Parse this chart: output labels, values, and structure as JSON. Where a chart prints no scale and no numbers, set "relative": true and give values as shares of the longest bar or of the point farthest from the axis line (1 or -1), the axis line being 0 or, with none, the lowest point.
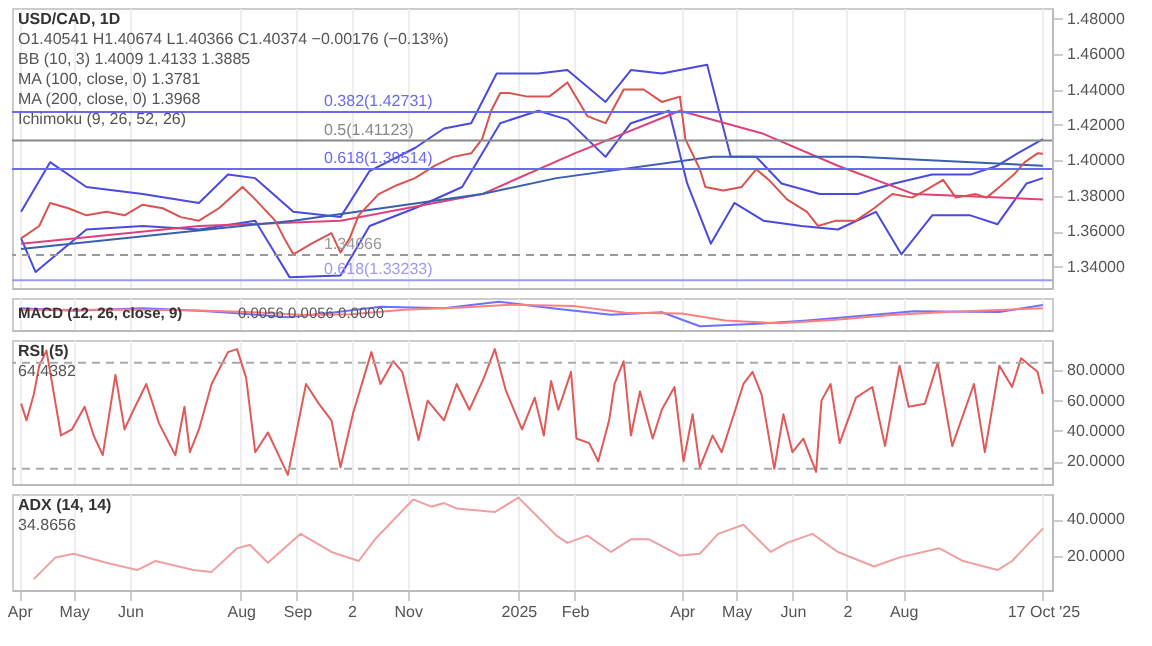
{
  "chart_data": [
    {
      "type": "line",
      "title": "USD/CAD, 1D",
      "annotations": [
        "O1.40541 H1.40674 L1.40366 C1.40374 −0.00176 (−0.13%)",
        "BB (10, 3)  1.4009  1.4133  1.3885",
        "MA (100, close, 0)  1.3781",
        "MA (200, close, 0)  1.3968",
        "Ichimoku (9, 26, 52, 26)"
      ],
      "xlim": [
        "2024-03-28",
        "2025-10-22"
      ],
      "ylim": [
        1.328,
        1.486
      ],
      "yticks": [
        {
          "value": 1.34,
          "label": "1.34000"
        },
        {
          "value": 1.36,
          "label": "1.36000"
        },
        {
          "value": 1.38,
          "label": "1.38000"
        },
        {
          "value": 1.4,
          "label": "1.40000"
        },
        {
          "value": 1.42,
          "label": "1.42000"
        },
        {
          "value": 1.44,
          "label": "1.44000"
        },
        {
          "value": 1.46,
          "label": "1.46000"
        },
        {
          "value": 1.48,
          "label": "1.48000"
        }
      ],
      "tick_labels": "y",
      "grid": "x",
      "xticks": [
        {
          "value": "2024-04-01",
          "label": null
        },
        {
          "value": "2024-05-01",
          "label": null
        },
        {
          "value": "2024-06-01",
          "label": null
        },
        {
          "value": "2024-08-01",
          "label": null
        },
        {
          "value": "2024-09-01",
          "label": null
        },
        {
          "value": "2024-10-01",
          "label": null
        },
        {
          "value": "2024-11-01",
          "label": null
        },
        {
          "value": "2025-01-01",
          "label": null
        },
        {
          "value": "2025-02-01",
          "label": null
        },
        {
          "value": "2025-04-01",
          "label": null
        },
        {
          "value": "2025-05-01",
          "label": null
        },
        {
          "value": "2025-06-01",
          "label": null
        },
        {
          "value": "2025-07-01",
          "label": null
        },
        {
          "value": "2025-08-01",
          "label": null
        },
        {
          "value": "2025-10-17",
          "label": null
        }
      ],
      "ref_lines": [
        {
          "axis": "y",
          "value": 1.42731,
          "label": "0.382(1.42731)",
          "color": "#6a6af0"
        },
        {
          "axis": "y",
          "value": 1.41123,
          "label": "0.5(1.41123)",
          "color": "#888888"
        },
        {
          "axis": "y",
          "value": 1.39514,
          "label": "0.618(1.39514)",
          "color": "#6a6af0"
        },
        {
          "axis": "y",
          "value": 1.33233,
          "label": "0.618(1.33233)",
          "color": "#9a9af5"
        },
        {
          "axis": "y",
          "value": 1.34666,
          "label": "1.34666",
          "color": "#999999",
          "line_style": "dashed"
        }
      ],
      "series": [
        {
          "color": "#4a4ae0",
          "x": [
            "2024-04-02",
            "2024-04-18",
            "2024-05-08",
            "2024-06-08",
            "2024-07-09",
            "2024-07-25",
            "2024-08-09",
            "2024-08-30",
            "2024-09-25",
            "2024-10-11",
            "2024-11-05",
            "2024-11-21",
            "2024-12-06",
            "2024-12-20",
            "2025-01-12",
            "2025-01-28",
            "2025-02-18",
            "2025-03-04",
            "2025-03-21",
            "2025-04-15",
            "2025-04-28",
            "2025-05-12",
            "2025-05-26",
            "2025-06-16",
            "2025-07-07",
            "2025-07-27",
            "2025-08-17",
            "2025-09-07",
            "2025-09-22",
            "2025-10-03",
            "2025-10-17"
          ],
          "values": [
            1.371,
            1.399,
            1.385,
            1.381,
            1.376,
            1.392,
            1.39,
            1.371,
            1.368,
            1.394,
            1.407,
            1.418,
            1.421,
            1.449,
            1.449,
            1.451,
            1.433,
            1.451,
            1.449,
            1.454,
            1.402,
            1.402,
            1.387,
            1.381,
            1.381,
            1.387,
            1.392,
            1.392,
            1.397,
            1.404,
            1.412
          ]
        },
        {
          "color": "#4a4ae0",
          "x": [
            "2024-04-02",
            "2024-04-10",
            "2024-05-08",
            "2024-06-08",
            "2024-07-09",
            "2024-08-09",
            "2024-08-28",
            "2024-09-25",
            "2024-10-11",
            "2024-11-05",
            "2024-12-01",
            "2024-12-22",
            "2025-01-12",
            "2025-01-28",
            "2025-02-18",
            "2025-03-04",
            "2025-03-25",
            "2025-04-04",
            "2025-04-17",
            "2025-04-30",
            "2025-05-16",
            "2025-06-06",
            "2025-06-26",
            "2025-07-17",
            "2025-07-31",
            "2025-08-17",
            "2025-09-07",
            "2025-09-22",
            "2025-10-08",
            "2025-10-17"
          ],
          "values": [
            1.356,
            1.337,
            1.361,
            1.363,
            1.361,
            1.366,
            1.334,
            1.335,
            1.363,
            1.373,
            1.385,
            1.421,
            1.428,
            1.423,
            1.402,
            1.421,
            1.428,
            1.387,
            1.353,
            1.376,
            1.366,
            1.363,
            1.361,
            1.371,
            1.347,
            1.369,
            1.369,
            1.364,
            1.387,
            1.39
          ]
        },
        {
          "color": "#e0407a",
          "x": [
            "2024-04-02",
            "2024-07-09",
            "2024-09-25",
            "2024-12-12",
            "2025-02-01",
            "2025-03-31",
            "2025-05-16",
            "2025-06-26",
            "2025-08-07",
            "2025-10-17"
          ],
          "values": [
            1.353,
            1.363,
            1.366,
            1.381,
            1.404,
            1.428,
            1.415,
            1.397,
            1.381,
            1.378
          ]
        },
        {
          "color": "#3a5fb0",
          "x": [
            "2024-04-02",
            "2024-08-30",
            "2024-12-12",
            "2025-01-22",
            "2025-04-18",
            "2025-07-07",
            "2025-10-17"
          ],
          "values": [
            1.35,
            1.366,
            1.381,
            1.39,
            1.402,
            1.402,
            1.397
          ]
        },
        {
          "color": "#d9534f",
          "x": [
            "2024-04-02",
            "2024-04-12",
            "2024-04-18",
            "2024-04-28",
            "2024-05-08",
            "2024-05-19",
            "2024-05-29",
            "2024-06-08",
            "2024-06-19",
            "2024-06-29",
            "2024-07-09",
            "2024-07-20",
            "2024-08-02",
            "2024-08-09",
            "2024-08-20",
            "2024-08-25",
            "2024-08-30",
            "2024-09-09",
            "2024-09-20",
            "2024-09-25",
            "2024-09-30",
            "2024-10-05",
            "2024-10-16",
            "2024-10-26",
            "2024-11-05",
            "2024-11-16",
            "2024-11-26",
            "2024-12-06",
            "2024-12-12",
            "2024-12-17",
            "2024-12-22",
            "2024-12-27",
            "2025-01-06",
            "2025-01-18",
            "2025-01-28",
            "2025-02-08",
            "2025-02-18",
            "2025-02-28",
            "2025-03-11",
            "2025-03-21",
            "2025-03-31",
            "2025-04-03",
            "2025-04-11",
            "2025-04-14",
            "2025-04-24",
            "2025-05-04",
            "2025-05-12",
            "2025-05-19",
            "2025-05-29",
            "2025-06-09",
            "2025-06-15",
            "2025-06-25",
            "2025-07-06",
            "2025-07-16",
            "2025-07-26",
            "2025-08-06",
            "2025-08-13",
            "2025-08-23",
            "2025-08-30",
            "2025-09-10",
            "2025-09-16",
            "2025-09-23",
            "2025-10-01",
            "2025-10-07",
            "2025-10-14",
            "2025-10-17"
          ],
          "values": [
            1.356,
            1.363,
            1.376,
            1.373,
            1.369,
            1.371,
            1.369,
            1.375,
            1.373,
            1.368,
            1.366,
            1.373,
            1.385,
            1.378,
            1.366,
            1.356,
            1.347,
            1.353,
            1.359,
            1.348,
            1.356,
            1.369,
            1.381,
            1.386,
            1.39,
            1.397,
            1.402,
            1.404,
            1.412,
            1.428,
            1.438,
            1.438,
            1.436,
            1.436,
            1.444,
            1.425,
            1.421,
            1.44,
            1.44,
            1.433,
            1.436,
            1.412,
            1.395,
            1.385,
            1.383,
            1.385,
            1.395,
            1.389,
            1.378,
            1.371,
            1.363,
            1.366,
            1.366,
            1.373,
            1.381,
            1.379,
            1.383,
            1.389,
            1.379,
            1.381,
            1.379,
            1.385,
            1.392,
            1.399,
            1.404,
            1.40374
          ]
        }
      ]
    },
    {
      "type": "line",
      "title": "MACD (12, 26, close, 9)",
      "annotations": [
        "0.0056  0.0056  0.0000"
      ],
      "relative": true,
      "xlim": [
        "2024-03-28",
        "2025-10-22"
      ],
      "tick_labels": false,
      "grid": "x",
      "xticks": [
        {
          "value": "2024-04-01",
          "label": null
        },
        {
          "value": "2024-05-01",
          "label": null
        },
        {
          "value": "2024-06-01",
          "label": null
        },
        {
          "value": "2024-08-01",
          "label": null
        },
        {
          "value": "2024-09-01",
          "label": null
        },
        {
          "value": "2024-10-01",
          "label": null
        },
        {
          "value": "2024-11-01",
          "label": null
        },
        {
          "value": "2025-01-01",
          "label": null
        },
        {
          "value": "2025-02-01",
          "label": null
        },
        {
          "value": "2025-04-01",
          "label": null
        },
        {
          "value": "2025-05-01",
          "label": null
        },
        {
          "value": "2025-06-01",
          "label": null
        },
        {
          "value": "2025-07-01",
          "label": null
        },
        {
          "value": "2025-08-01",
          "label": null
        },
        {
          "value": "2025-10-17",
          "label": null
        }
      ],
      "series": [
        {
          "color": "#7070ff",
          "x": [
            "2024-04-02",
            "2024-05-01",
            "2024-06-08",
            "2024-07-09",
            "2024-07-26",
            "2024-08-27",
            "2024-09-20",
            "2024-10-17",
            "2024-11-21",
            "2024-12-21",
            "2025-01-22",
            "2025-02-21",
            "2025-03-21",
            "2025-04-11",
            "2025-05-13",
            "2025-06-09",
            "2025-07-16",
            "2025-08-07",
            "2025-09-23",
            "2025-10-17"
          ],
          "values": [
            0.73,
            0.63,
            0.73,
            0.63,
            0.55,
            0.37,
            0.55,
            0.79,
            0.73,
            1,
            0.71,
            0.47,
            0.57,
            0,
            0.1,
            0.24,
            0.47,
            0.61,
            0.58,
            0.87
          ]
        },
        {
          "color": "#ff8080",
          "x": [
            "2024-04-02",
            "2024-05-01",
            "2024-06-08",
            "2024-07-09",
            "2024-08-05",
            "2024-09-05",
            "2024-10-01",
            "2024-10-30",
            "2024-12-01",
            "2024-12-28",
            "2025-02-01",
            "2025-03-01",
            "2025-04-01",
            "2025-04-25",
            "2025-05-25",
            "2025-06-25",
            "2025-07-25",
            "2025-08-25",
            "2025-10-17"
          ],
          "values": [
            0.67,
            0.67,
            0.67,
            0.64,
            0.58,
            0.46,
            0.49,
            0.67,
            0.76,
            0.88,
            0.82,
            0.55,
            0.52,
            0.24,
            0.12,
            0.27,
            0.46,
            0.58,
            0.73
          ]
        }
      ]
    },
    {
      "type": "line",
      "title": "RSI (5)",
      "annotations": [
        "64.4382"
      ],
      "xlim": [
        "2024-03-28",
        "2025-10-22"
      ],
      "ylim": [
        5,
        100
      ],
      "yticks": [
        {
          "value": 20,
          "label": "20.0000"
        },
        {
          "value": 40,
          "label": "40.0000"
        },
        {
          "value": 60,
          "label": "60.0000"
        },
        {
          "value": 80,
          "label": "80.0000"
        }
      ],
      "tick_labels": "y",
      "grid": "x",
      "xticks": [
        {
          "value": "2024-04-01",
          "label": null
        },
        {
          "value": "2024-05-01",
          "label": null
        },
        {
          "value": "2024-06-01",
          "label": null
        },
        {
          "value": "2024-08-01",
          "label": null
        },
        {
          "value": "2024-09-01",
          "label": null
        },
        {
          "value": "2024-10-01",
          "label": null
        },
        {
          "value": "2024-11-01",
          "label": null
        },
        {
          "value": "2025-01-01",
          "label": null
        },
        {
          "value": "2025-02-01",
          "label": null
        },
        {
          "value": "2025-04-01",
          "label": null
        },
        {
          "value": "2025-05-01",
          "label": null
        },
        {
          "value": "2025-06-01",
          "label": null
        },
        {
          "value": "2025-07-01",
          "label": null
        },
        {
          "value": "2025-08-01",
          "label": null
        },
        {
          "value": "2025-10-17",
          "label": null
        }
      ],
      "ref_lines": [
        {
          "axis": "y",
          "value": 85,
          "color": "#aaaaaa",
          "line_style": "dashed"
        },
        {
          "axis": "y",
          "value": 15,
          "color": "#aaaaaa",
          "line_style": "dashed"
        }
      ],
      "series": [
        {
          "color": "#e05a5a",
          "x": [
            "2024-04-02",
            "2024-04-05",
            "2024-04-09",
            "2024-04-12",
            "2024-04-16",
            "2024-04-21",
            "2024-04-24",
            "2024-04-30",
            "2024-05-07",
            "2024-05-12",
            "2024-05-17",
            "2024-05-24",
            "2024-05-29",
            "2024-06-03",
            "2024-06-10",
            "2024-06-17",
            "2024-06-26",
            "2024-07-01",
            "2024-07-04",
            "2024-07-09",
            "2024-07-16",
            "2024-07-25",
            "2024-07-30",
            "2024-08-04",
            "2024-08-09",
            "2024-08-16",
            "2024-08-27",
            "2024-09-06",
            "2024-09-13",
            "2024-09-20",
            "2024-09-25",
            "2024-10-02",
            "2024-10-12",
            "2024-10-17",
            "2024-10-24",
            "2024-10-29",
            "2024-11-07",
            "2024-11-12",
            "2024-11-21",
            "2024-11-28",
            "2024-12-05",
            "2024-12-13",
            "2024-12-19",
            "2024-12-25",
            "2025-01-03",
            "2025-01-10",
            "2025-01-15",
            "2025-01-19",
            "2025-01-23",
            "2025-01-30",
            "2025-02-02",
            "2025-02-09",
            "2025-02-14",
            "2025-02-20",
            "2025-02-23",
            "2025-02-28",
            "2025-03-04",
            "2025-03-09",
            "2025-03-16",
            "2025-03-21",
            "2025-03-28",
            "2025-04-02",
            "2025-04-07",
            "2025-04-11",
            "2025-04-18",
            "2025-04-23",
            "2025-04-30",
            "2025-05-05",
            "2025-05-10",
            "2025-05-15",
            "2025-05-22",
            "2025-05-27",
            "2025-06-01",
            "2025-06-07",
            "2025-06-14",
            "2025-06-17",
            "2025-06-22",
            "2025-06-27",
            "2025-07-06",
            "2025-07-15",
            "2025-07-22",
            "2025-07-30",
            "2025-08-04",
            "2025-08-13",
            "2025-08-20",
            "2025-08-28",
            "2025-09-09",
            "2025-09-15",
            "2025-09-23",
            "2025-09-30",
            "2025-10-05",
            "2025-10-14",
            "2025-10-17"
          ],
          "values": [
            58,
            47,
            64,
            83,
            93,
            58,
            37,
            41,
            56,
            37,
            24,
            77,
            41,
            54,
            71,
            45,
            24,
            56,
            26,
            41,
            71,
            92,
            94,
            75,
            26,
            39,
            11,
            71,
            58,
            47,
            16,
            52,
            92,
            71,
            86,
            79,
            34,
            60,
            47,
            71,
            54,
            75,
            94,
            67,
            41,
            62,
            37,
            73,
            54,
            79,
            35,
            32,
            20,
            47,
            71,
            86,
            37,
            66,
            35,
            54,
            69,
            20,
            51,
            16,
            37,
            26,
            52,
            71,
            79,
            64,
            15,
            51,
            26,
            35,
            13,
            60,
            71,
            32,
            62,
            69,
            30,
            83,
            56,
            58,
            85,
            30,
            71,
            26,
            83,
            69,
            88,
            79,
            64.4
          ]
        }
      ]
    },
    {
      "type": "line",
      "title": "ADX (14, 14)",
      "annotations": [
        "34.8656"
      ],
      "xlim": [
        "2024-03-28",
        "2025-10-22"
      ],
      "ylim": [
        1,
        54
      ],
      "yticks": [
        {
          "value": 20,
          "label": "20.0000"
        },
        {
          "value": 40,
          "label": "40.0000"
        }
      ],
      "grid": "x",
      "xticks": [
        {
          "value": "2024-04-01",
          "label": "Apr"
        },
        {
          "value": "2024-05-01",
          "label": "May"
        },
        {
          "value": "2024-06-01",
          "label": "Jun"
        },
        {
          "value": "2024-08-01",
          "label": "Aug"
        },
        {
          "value": "2024-09-01",
          "label": "Sep"
        },
        {
          "value": "2024-10-01",
          "label": "2"
        },
        {
          "value": "2024-11-01",
          "label": "Nov"
        },
        {
          "value": "2025-01-01",
          "label": "2025"
        },
        {
          "value": "2025-02-01",
          "label": "Feb"
        },
        {
          "value": "2025-04-01",
          "label": "Apr"
        },
        {
          "value": "2025-05-01",
          "label": "May"
        },
        {
          "value": "2025-06-01",
          "label": "Jun"
        },
        {
          "value": "2025-07-01",
          "label": "2"
        },
        {
          "value": "2025-08-01",
          "label": "Aug"
        },
        {
          "value": "2025-10-17",
          "label": "17 Oct '25"
        }
      ],
      "series": [
        {
          "color": "#f0a0a0",
          "x": [
            "2024-04-09",
            "2024-04-21",
            "2024-05-01",
            "2024-05-19",
            "2024-06-05",
            "2024-06-15",
            "2024-07-06",
            "2024-07-16",
            "2024-07-30",
            "2024-08-06",
            "2024-08-16",
            "2024-09-03",
            "2024-09-20",
            "2024-10-05",
            "2024-10-14",
            "2024-11-04",
            "2024-11-14",
            "2024-11-21",
            "2024-11-28",
            "2024-12-19",
            "2025-01-01",
            "2025-01-22",
            "2025-01-28",
            "2025-02-08",
            "2025-02-21",
            "2025-03-04",
            "2025-03-14",
            "2025-03-31",
            "2025-04-11",
            "2025-04-21",
            "2025-05-05",
            "2025-05-20",
            "2025-05-29",
            "2025-06-12",
            "2025-06-26",
            "2025-07-16",
            "2025-07-30",
            "2025-08-21",
            "2025-09-03",
            "2025-09-22",
            "2025-09-30",
            "2025-10-17"
          ],
          "values": [
            7,
            19,
            21,
            16,
            12,
            17,
            12,
            11,
            24,
            26,
            16,
            32,
            22,
            17,
            29,
            51,
            47,
            49,
            46,
            44,
            52,
            31,
            27,
            31,
            22,
            29,
            29,
            20,
            21,
            32,
            37,
            22,
            27,
            32,
            22,
            14,
            19,
            24,
            17,
            12,
            17,
            34.9
          ]
        }
      ]
    }
  ]
}
